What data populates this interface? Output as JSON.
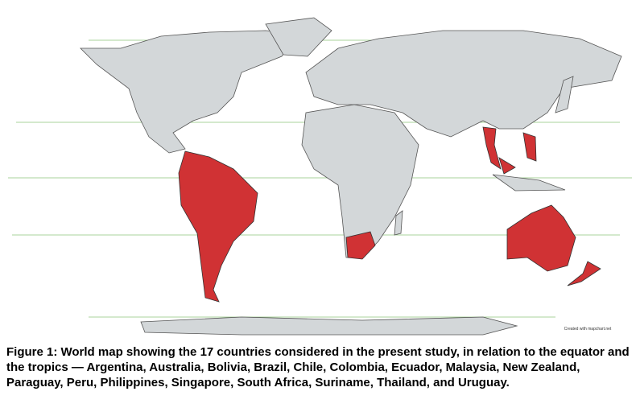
{
  "map": {
    "credit": "Created with mapchart.net"
  },
  "caption": "Figure 1: World map showing the 17 countries considered in the present study, in relation to the equator and the tropics — Argentina, Australia, Bolivia, Brazil, Chile, Colombia, Ecuador, Malaysia, New Zealand, Paraguay, Peru, Philippines, Singapore, South Africa, Suriname, Thailand, and Uruguay."
}
